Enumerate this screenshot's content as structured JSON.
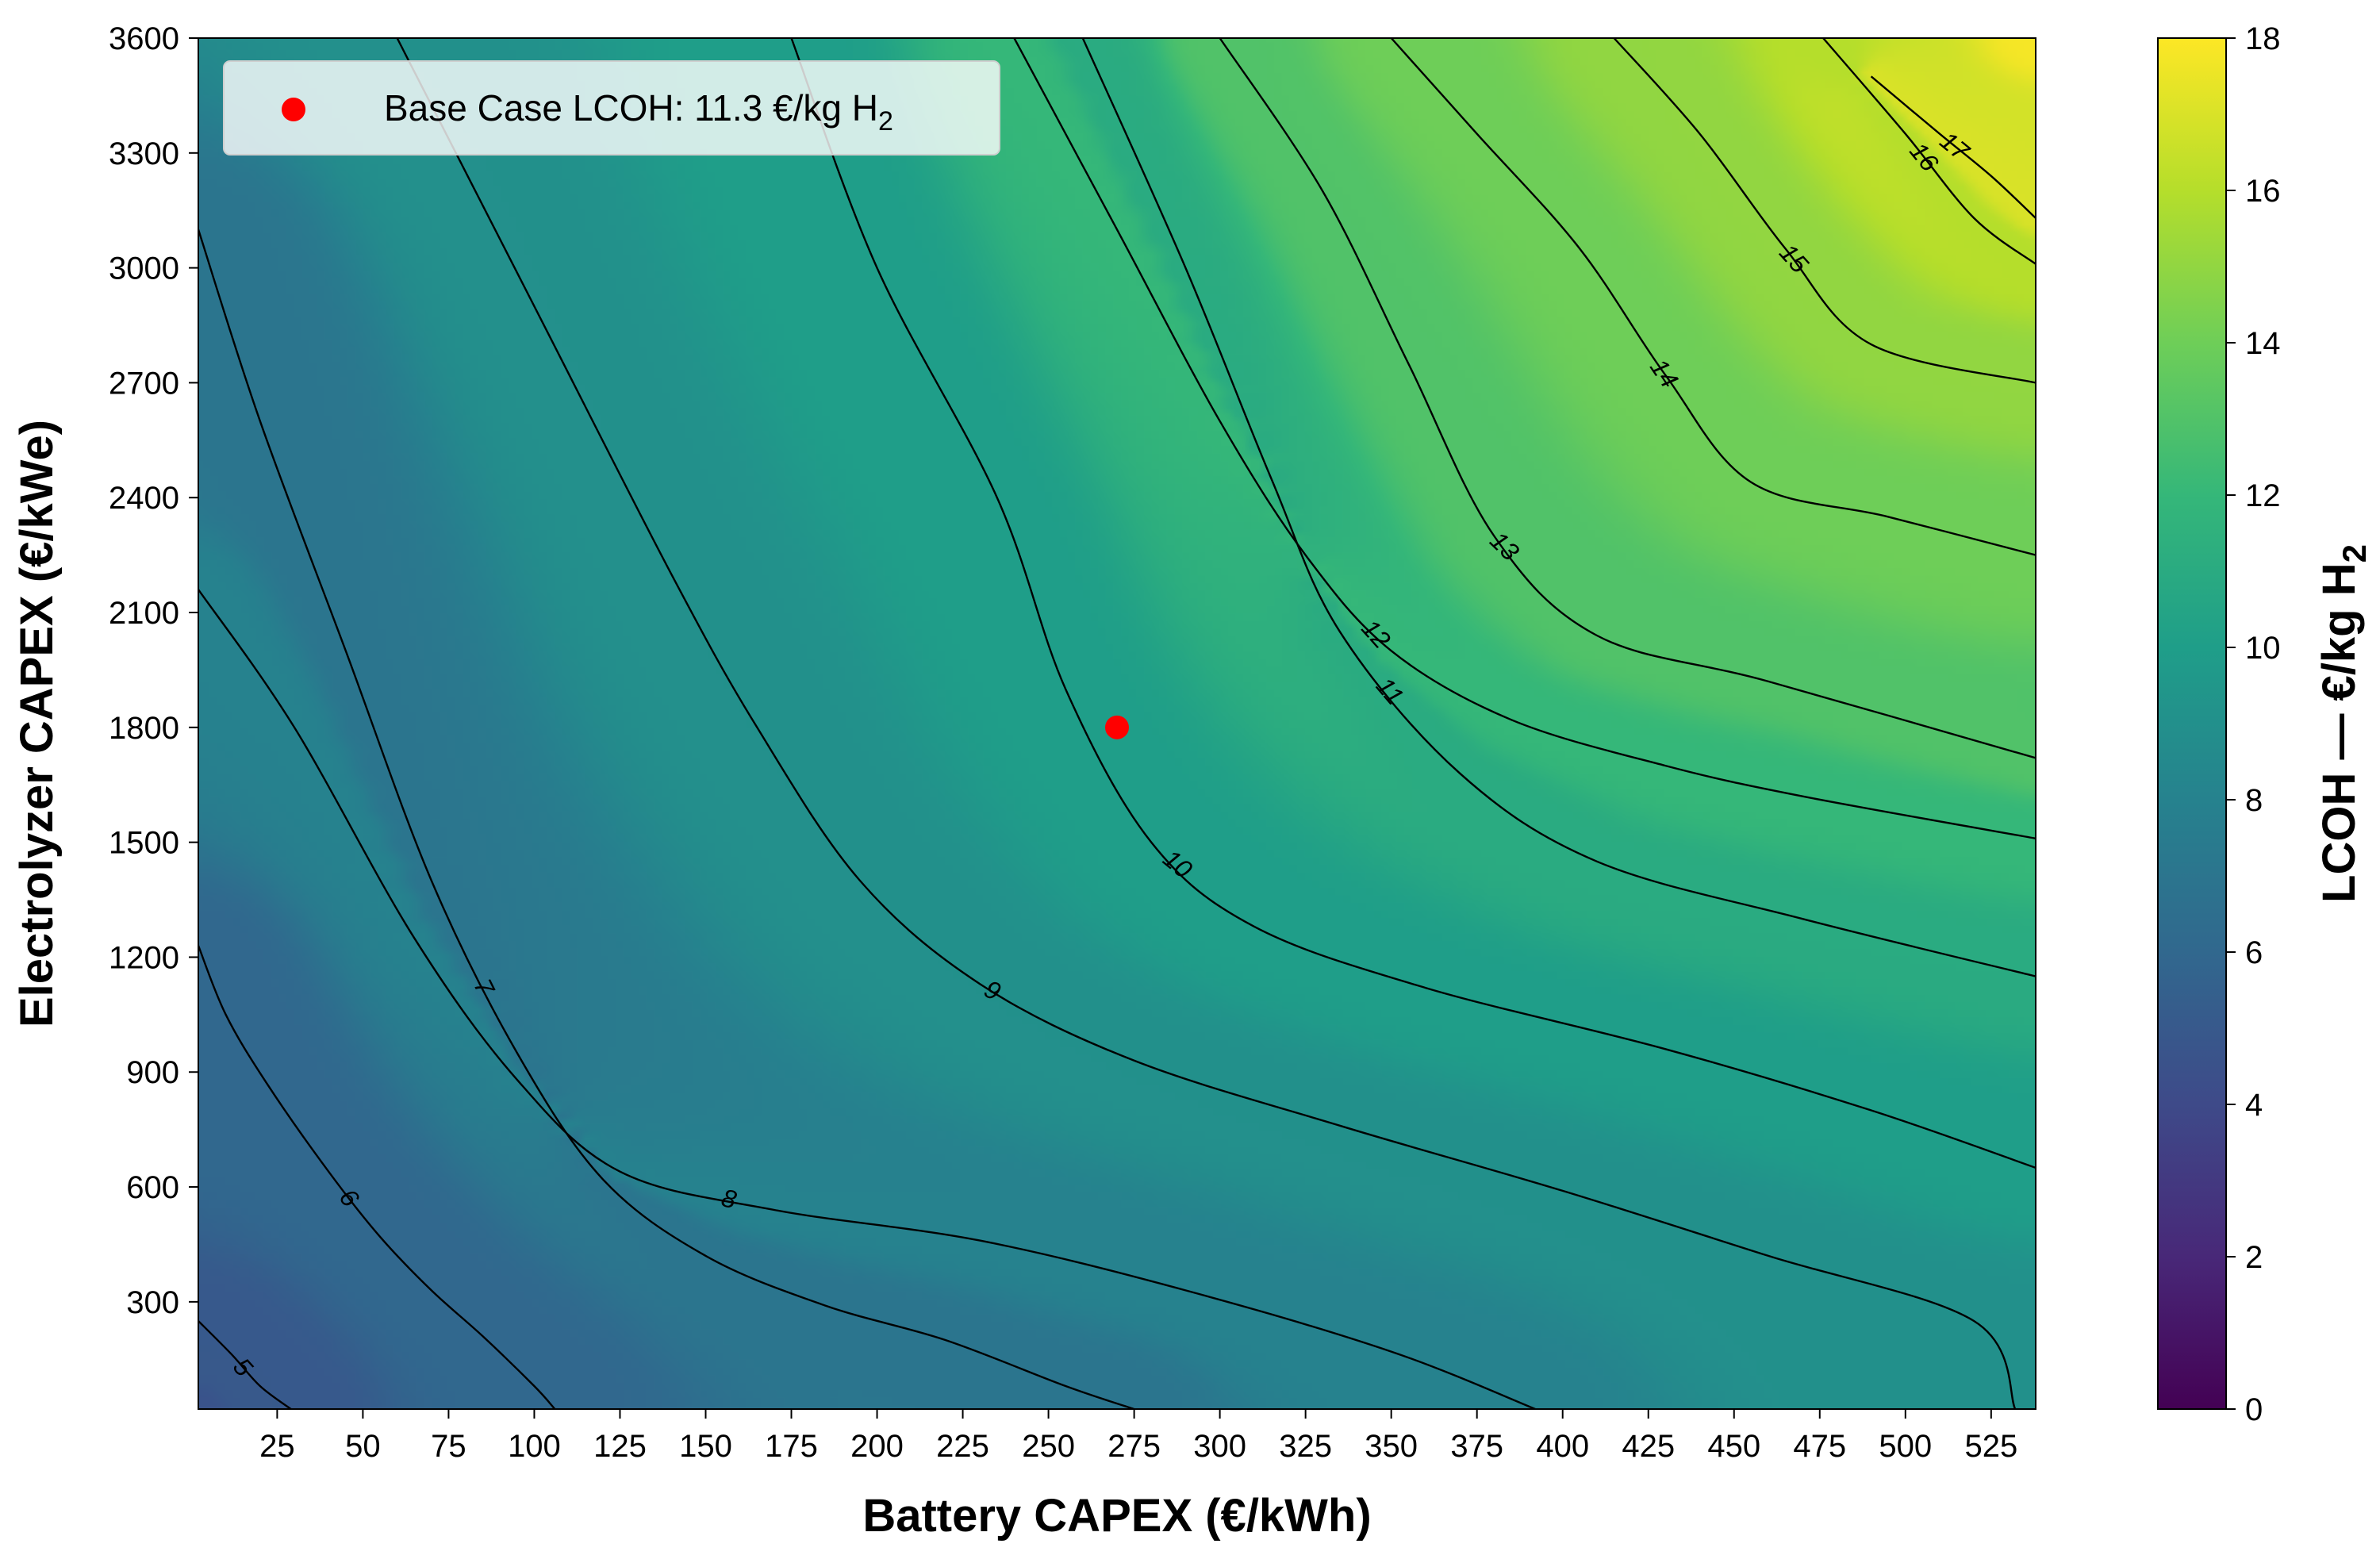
{
  "chart_data": {
    "type": "heatmap",
    "subtype": "filled-contour",
    "title": "",
    "xlabel": "Battery CAPEX (€/kWh)",
    "ylabel": "Electrolyzer CAPEX (€/kWe)",
    "xlim": [
      2,
      538
    ],
    "ylim": [
      20,
      3600
    ],
    "x_ticks": [
      25,
      50,
      75,
      100,
      125,
      150,
      175,
      200,
      225,
      250,
      275,
      300,
      325,
      350,
      375,
      400,
      425,
      450,
      475,
      500,
      525
    ],
    "y_ticks": [
      300,
      600,
      900,
      1200,
      1500,
      1800,
      2100,
      2400,
      2700,
      3000,
      3300,
      3600
    ],
    "colormap": "viridis",
    "grid": false,
    "colorbar": {
      "label_main": "LCOH — €/kg H",
      "label_sub": "2",
      "range": [
        0,
        18
      ],
      "ticks": [
        0,
        2,
        4,
        6,
        8,
        10,
        12,
        14,
        16,
        18
      ]
    },
    "z_range_shown": [
      4.6,
      17.8
    ],
    "contour_lines": [
      {
        "level": 5,
        "label": "5",
        "points": [
          [
            2,
            250
          ],
          [
            12,
            160
          ],
          [
            20,
            80
          ],
          [
            29,
            20
          ]
        ]
      },
      {
        "level": 6,
        "label": "6",
        "points": [
          [
            2,
            1230
          ],
          [
            10,
            1050
          ],
          [
            22,
            870
          ],
          [
            40,
            640
          ],
          [
            55,
            470
          ],
          [
            70,
            330
          ],
          [
            85,
            210
          ],
          [
            100,
            80
          ],
          [
            106,
            20
          ]
        ]
      },
      {
        "level": 7,
        "label": "7",
        "points": [
          [
            2,
            3100
          ],
          [
            20,
            2600
          ],
          [
            45,
            2000
          ],
          [
            70,
            1400
          ],
          [
            95,
            950
          ],
          [
            120,
            620
          ],
          [
            150,
            420
          ],
          [
            185,
            290
          ],
          [
            220,
            200
          ],
          [
            255,
            80
          ],
          [
            275,
            20
          ]
        ]
      },
      {
        "level": 8,
        "label": "8",
        "points": [
          [
            2,
            2160
          ],
          [
            30,
            1800
          ],
          [
            65,
            1250
          ],
          [
            95,
            880
          ],
          [
            125,
            640
          ],
          [
            170,
            540
          ],
          [
            230,
            460
          ],
          [
            290,
            330
          ],
          [
            350,
            170
          ],
          [
            392,
            20
          ]
        ]
      },
      {
        "level": 9,
        "label": "9",
        "points": [
          [
            60,
            3600
          ],
          [
            100,
            2900
          ],
          [
            140,
            2200
          ],
          [
            165,
            1800
          ],
          [
            195,
            1400
          ],
          [
            230,
            1130
          ],
          [
            275,
            930
          ],
          [
            335,
            760
          ],
          [
            400,
            590
          ],
          [
            460,
            420
          ],
          [
            520,
            250
          ],
          [
            532,
            20
          ]
        ]
      },
      {
        "level": 10,
        "label": "10",
        "points": [
          [
            175,
            3600
          ],
          [
            200,
            3000
          ],
          [
            235,
            2400
          ],
          [
            255,
            1900
          ],
          [
            280,
            1500
          ],
          [
            310,
            1280
          ],
          [
            360,
            1120
          ],
          [
            430,
            960
          ],
          [
            490,
            800
          ],
          [
            538,
            650
          ]
        ]
      },
      {
        "level": 11,
        "label": "11",
        "points": [
          [
            260,
            3600
          ],
          [
            290,
            3000
          ],
          [
            315,
            2450
          ],
          [
            335,
            2050
          ],
          [
            370,
            1680
          ],
          [
            410,
            1450
          ],
          [
            470,
            1300
          ],
          [
            538,
            1150
          ]
        ]
      },
      {
        "level": 12,
        "label": "12",
        "points": [
          [
            240,
            3600
          ],
          [
            270,
            3100
          ],
          [
            300,
            2600
          ],
          [
            325,
            2250
          ],
          [
            350,
            2000
          ],
          [
            385,
            1820
          ],
          [
            430,
            1700
          ],
          [
            470,
            1620
          ],
          [
            538,
            1510
          ]
        ]
      },
      {
        "level": 13,
        "label": "13",
        "points": [
          [
            300,
            3600
          ],
          [
            330,
            3200
          ],
          [
            355,
            2750
          ],
          [
            380,
            2300
          ],
          [
            410,
            2040
          ],
          [
            460,
            1920
          ],
          [
            538,
            1720
          ]
        ]
      },
      {
        "level": 14,
        "label": "14",
        "points": [
          [
            350,
            3600
          ],
          [
            375,
            3350
          ],
          [
            405,
            3050
          ],
          [
            430,
            2720
          ],
          [
            455,
            2440
          ],
          [
            495,
            2350
          ],
          [
            538,
            2250
          ]
        ]
      },
      {
        "level": 15,
        "label": "15",
        "points": [
          [
            415,
            3600
          ],
          [
            440,
            3350
          ],
          [
            465,
            3050
          ],
          [
            490,
            2800
          ],
          [
            538,
            2700
          ]
        ]
      },
      {
        "level": 16,
        "label": "16",
        "points": [
          [
            476,
            3600
          ],
          [
            500,
            3350
          ],
          [
            520,
            3130
          ],
          [
            538,
            3010
          ]
        ]
      },
      {
        "level": 17,
        "label": "17",
        "points": [
          [
            490,
            3500
          ],
          [
            510,
            3350
          ],
          [
            525,
            3240
          ],
          [
            538,
            3130
          ]
        ]
      }
    ],
    "points": [
      {
        "name": "Base Case LCOH: 11.3 €/kg H2",
        "x": 270,
        "y": 1800,
        "color": "#ff0000"
      }
    ],
    "legend": {
      "position": "top-left",
      "entry_main": "Base Case LCOH: 11.3 €/kg H",
      "entry_sub": "2"
    }
  },
  "colors": {
    "viridis_stops": [
      "#440154",
      "#482878",
      "#3e4a89",
      "#31688e",
      "#26828e",
      "#1f9e89",
      "#35b779",
      "#6ece58",
      "#b5de2b",
      "#fde725"
    ],
    "marker": "#ff0000",
    "contour": "#000000"
  }
}
